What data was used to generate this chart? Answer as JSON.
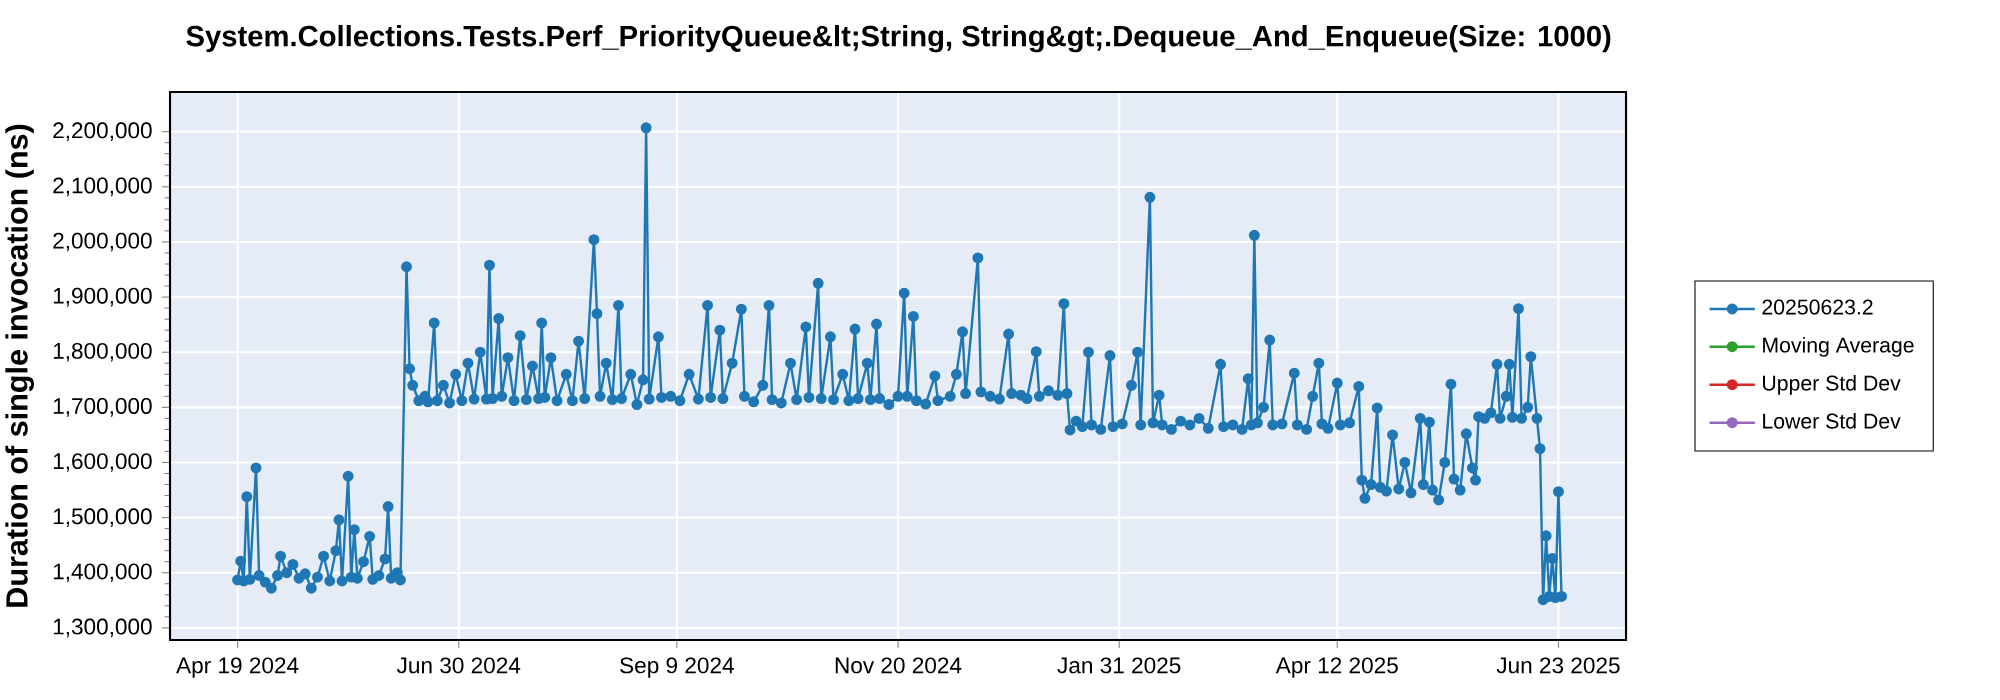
{
  "chart_data": {
    "type": "line",
    "title": "System.Collections.Tests.Perf_PriorityQueue&lt;String, String&gt;.Dequeue_And_Enqueue(Size: 1000)",
    "ylabel": "Duration of single invocation (ns)",
    "x": [
      "2024-04-19",
      "2024-04-20",
      "2024-04-21",
      "2024-04-22",
      "2024-04-23",
      "2024-04-25",
      "2024-04-26",
      "2024-04-28",
      "2024-04-30",
      "2024-05-02",
      "2024-05-03",
      "2024-05-05",
      "2024-05-07",
      "2024-05-09",
      "2024-05-11",
      "2024-05-13",
      "2024-05-15",
      "2024-05-17",
      "2024-05-19",
      "2024-05-21",
      "2024-05-22",
      "2024-05-23",
      "2024-05-25",
      "2024-05-26",
      "2024-05-27",
      "2024-05-28",
      "2024-05-30",
      "2024-06-01",
      "2024-06-02",
      "2024-06-04",
      "2024-06-06",
      "2024-06-07",
      "2024-06-08",
      "2024-06-10",
      "2024-06-11",
      "2024-06-13",
      "2024-06-14",
      "2024-06-15",
      "2024-06-17",
      "2024-06-19",
      "2024-06-20",
      "2024-06-22",
      "2024-06-23",
      "2024-06-25",
      "2024-06-27",
      "2024-06-29",
      "2024-07-01",
      "2024-07-03",
      "2024-07-05",
      "2024-07-07",
      "2024-07-09",
      "2024-07-10",
      "2024-07-11",
      "2024-07-13",
      "2024-07-14",
      "2024-07-16",
      "2024-07-18",
      "2024-07-20",
      "2024-07-22",
      "2024-07-24",
      "2024-07-26",
      "2024-07-27",
      "2024-07-28",
      "2024-07-30",
      "2024-08-01",
      "2024-08-04",
      "2024-08-06",
      "2024-08-08",
      "2024-08-10",
      "2024-08-13",
      "2024-08-14",
      "2024-08-15",
      "2024-08-17",
      "2024-08-19",
      "2024-08-21",
      "2024-08-22",
      "2024-08-25",
      "2024-08-27",
      "2024-08-29",
      "2024-08-30",
      "2024-08-31",
      "2024-09-03",
      "2024-09-04",
      "2024-09-07",
      "2024-09-10",
      "2024-09-13",
      "2024-09-16",
      "2024-09-19",
      "2024-09-20",
      "2024-09-23",
      "2024-09-24",
      "2024-09-27",
      "2024-09-30",
      "2024-10-01",
      "2024-10-04",
      "2024-10-07",
      "2024-10-09",
      "2024-10-10",
      "2024-10-13",
      "2024-10-16",
      "2024-10-18",
      "2024-10-21",
      "2024-10-22",
      "2024-10-25",
      "2024-10-26",
      "2024-10-29",
      "2024-10-30",
      "2024-11-02",
      "2024-11-04",
      "2024-11-06",
      "2024-11-07",
      "2024-11-10",
      "2024-11-11",
      "2024-11-13",
      "2024-11-14",
      "2024-11-17",
      "2024-11-20",
      "2024-11-22",
      "2024-11-23",
      "2024-11-25",
      "2024-11-26",
      "2024-11-29",
      "2024-12-02",
      "2024-12-03",
      "2024-12-07",
      "2024-12-09",
      "2024-12-11",
      "2024-12-12",
      "2024-12-16",
      "2024-12-17",
      "2024-12-20",
      "2024-12-23",
      "2024-12-26",
      "2024-12-27",
      "2024-12-30",
      "2025-01-01",
      "2025-01-04",
      "2025-01-05",
      "2025-01-08",
      "2025-01-11",
      "2025-01-13",
      "2025-01-14",
      "2025-01-15",
      "2025-01-17",
      "2025-01-19",
      "2025-01-21",
      "2025-01-22",
      "2025-01-25",
      "2025-01-28",
      "2025-01-29",
      "2025-02-01",
      "2025-02-04",
      "2025-02-06",
      "2025-02-07",
      "2025-02-10",
      "2025-02-11",
      "2025-02-13",
      "2025-02-14",
      "2025-02-17",
      "2025-02-20",
      "2025-02-23",
      "2025-02-26",
      "2025-03-01",
      "2025-03-05",
      "2025-03-06",
      "2025-03-09",
      "2025-03-12",
      "2025-03-14",
      "2025-03-15",
      "2025-03-16",
      "2025-03-17",
      "2025-03-19",
      "2025-03-21",
      "2025-03-22",
      "2025-03-25",
      "2025-03-29",
      "2025-03-30",
      "2025-04-02",
      "2025-04-04",
      "2025-04-06",
      "2025-04-07",
      "2025-04-09",
      "2025-04-12",
      "2025-04-13",
      "2025-04-16",
      "2025-04-19",
      "2025-04-20",
      "2025-04-21",
      "2025-04-23",
      "2025-04-25",
      "2025-04-26",
      "2025-04-28",
      "2025-04-30",
      "2025-05-02",
      "2025-05-04",
      "2025-05-06",
      "2025-05-09",
      "2025-05-10",
      "2025-05-12",
      "2025-05-13",
      "2025-05-15",
      "2025-05-17",
      "2025-05-19",
      "2025-05-20",
      "2025-05-22",
      "2025-05-24",
      "2025-05-26",
      "2025-05-27",
      "2025-05-28",
      "2025-05-30",
      "2025-06-01",
      "2025-06-03",
      "2025-06-04",
      "2025-06-06",
      "2025-06-07",
      "2025-06-08",
      "2025-06-10",
      "2025-06-11",
      "2025-06-13",
      "2025-06-14",
      "2025-06-16",
      "2025-06-17",
      "2025-06-18",
      "2025-06-19",
      "2025-06-20",
      "2025-06-21",
      "2025-06-22",
      "2025-06-23",
      "2025-06-24"
    ],
    "series": [
      {
        "name": "20250623.2",
        "color": "#1f77b4",
        "values": [
          1387000,
          1421000,
          1385000,
          1538000,
          1388000,
          1590000,
          1395000,
          1383000,
          1372000,
          1395000,
          1430000,
          1400000,
          1415000,
          1390000,
          1398000,
          1372000,
          1392000,
          1430000,
          1385000,
          1440000,
          1496000,
          1385000,
          1575000,
          1392000,
          1478000,
          1390000,
          1420000,
          1466000,
          1388000,
          1395000,
          1425000,
          1520000,
          1390000,
          1400000,
          1387000,
          1955000,
          1770000,
          1740000,
          1712000,
          1720000,
          1710000,
          1853000,
          1712000,
          1740000,
          1708000,
          1760000,
          1712000,
          1780000,
          1715000,
          1800000,
          1715000,
          1958000,
          1716000,
          1861000,
          1720000,
          1790000,
          1712000,
          1830000,
          1714000,
          1775000,
          1716000,
          1853000,
          1718000,
          1790000,
          1712000,
          1760000,
          1712000,
          1820000,
          1716000,
          2004000,
          1870000,
          1720000,
          1780000,
          1714000,
          1885000,
          1716000,
          1760000,
          1705000,
          1750000,
          2207000,
          1715000,
          1828000,
          1718000,
          1720000,
          1712000,
          1760000,
          1715000,
          1885000,
          1718000,
          1840000,
          1716000,
          1780000,
          1878000,
          1720000,
          1710000,
          1740000,
          1885000,
          1714000,
          1708000,
          1780000,
          1714000,
          1846000,
          1718000,
          1925000,
          1716000,
          1828000,
          1714000,
          1760000,
          1712000,
          1842000,
          1716000,
          1780000,
          1714000,
          1851000,
          1716000,
          1705000,
          1720000,
          1907000,
          1720000,
          1865000,
          1712000,
          1706000,
          1757000,
          1712000,
          1720000,
          1760000,
          1837000,
          1725000,
          1971000,
          1728000,
          1720000,
          1715000,
          1833000,
          1725000,
          1722000,
          1716000,
          1801000,
          1720000,
          1730000,
          1722000,
          1888000,
          1725000,
          1659000,
          1675000,
          1665000,
          1800000,
          1668000,
          1660000,
          1794000,
          1665000,
          1670000,
          1740000,
          1800000,
          1668000,
          2081000,
          1672000,
          1722000,
          1668000,
          1660000,
          1675000,
          1668000,
          1680000,
          1662000,
          1778000,
          1665000,
          1668000,
          1660000,
          1752000,
          1668000,
          2012000,
          1672000,
          1700000,
          1822000,
          1668000,
          1670000,
          1762000,
          1668000,
          1660000,
          1720000,
          1780000,
          1670000,
          1662000,
          1744000,
          1668000,
          1672000,
          1738000,
          1568000,
          1535000,
          1560000,
          1699000,
          1555000,
          1548000,
          1650000,
          1552000,
          1600000,
          1545000,
          1680000,
          1560000,
          1673000,
          1550000,
          1532000,
          1600000,
          1742000,
          1570000,
          1550000,
          1652000,
          1590000,
          1568000,
          1683000,
          1680000,
          1690000,
          1778000,
          1680000,
          1720000,
          1778000,
          1682000,
          1879000,
          1680000,
          1700000,
          1792000,
          1680000,
          1625000,
          1351000,
          1467000,
          1357000,
          1426000,
          1355000,
          1547000,
          1357000
        ]
      },
      {
        "name": "Moving Average",
        "color": "#2ca02c",
        "values": [
          null,
          null,
          null,
          null,
          null,
          null,
          null,
          null,
          null,
          null,
          null,
          null,
          null,
          null,
          null,
          null,
          null,
          null,
          null,
          null,
          null,
          null,
          null,
          null,
          null,
          null,
          null,
          null,
          null,
          null,
          null,
          null,
          null,
          null,
          null,
          null,
          null,
          null,
          null,
          null,
          null,
          null,
          null,
          null,
          null,
          null,
          null,
          null,
          null,
          null,
          null,
          null,
          null,
          null,
          null,
          null,
          null,
          null,
          null,
          null,
          null,
          null,
          null,
          null,
          null,
          null,
          null,
          null,
          null,
          null,
          null,
          null,
          null,
          null,
          null,
          null,
          null,
          null,
          null,
          null,
          null,
          null,
          null,
          null,
          null,
          null,
          null,
          null,
          null,
          null,
          null,
          null,
          null,
          null,
          null,
          null,
          null,
          null,
          null,
          null,
          null,
          null,
          null,
          null,
          null,
          null,
          null,
          null,
          null,
          null,
          null,
          null,
          null,
          null,
          null,
          null,
          null,
          null,
          null,
          null,
          null,
          null,
          null,
          null,
          null,
          null,
          null,
          null,
          null,
          null,
          null,
          null,
          null,
          null,
          null,
          null,
          null,
          null,
          null,
          null,
          null,
          null,
          null,
          null,
          null,
          null,
          null,
          null,
          null,
          null,
          null,
          null,
          null,
          null,
          null,
          null,
          null,
          null,
          null,
          null,
          null,
          null,
          null,
          null,
          null,
          null,
          null,
          null,
          null,
          null,
          null,
          null,
          null,
          null,
          null,
          null,
          null,
          null,
          null,
          null,
          null,
          null,
          null,
          null,
          null,
          null,
          null,
          null,
          null,
          null,
          null,
          null,
          null,
          null,
          null,
          null,
          null,
          null,
          null,
          null,
          null,
          null,
          null,
          null,
          null,
          null,
          null,
          null,
          null,
          null,
          null,
          null,
          null,
          null,
          null,
          null,
          null,
          null,
          null,
          null,
          null,
          null,
          null,
          null,
          null,
          null,
          null,
          null,
          null
        ]
      },
      {
        "name": "Upper Std Dev",
        "color": "#d62728",
        "values": [
          null,
          null,
          null,
          null,
          null,
          null,
          null,
          null,
          null,
          null,
          null,
          null,
          null,
          null,
          null,
          null,
          null,
          null,
          null,
          null,
          null,
          null,
          null,
          null,
          null,
          null,
          null,
          null,
          null,
          null,
          null,
          null,
          null,
          null,
          null,
          null,
          null,
          null,
          null,
          null,
          null,
          null,
          null,
          null,
          null,
          null,
          null,
          null,
          null,
          null,
          null,
          null,
          null,
          null,
          null,
          null,
          null,
          null,
          null,
          null,
          null,
          null,
          null,
          null,
          null,
          null,
          null,
          null,
          null,
          null,
          null,
          null,
          null,
          null,
          null,
          null,
          null,
          null,
          null,
          null,
          null,
          null,
          null,
          null,
          null,
          null,
          null,
          null,
          null,
          null,
          null,
          null,
          null,
          null,
          null,
          null,
          null,
          null,
          null,
          null,
          null,
          null,
          null,
          null,
          null,
          null,
          null,
          null,
          null,
          null,
          null,
          null,
          null,
          null,
          null,
          null,
          null,
          null,
          null,
          null,
          null,
          null,
          null,
          null,
          null,
          null,
          null,
          null,
          null,
          null,
          null,
          null,
          null,
          null,
          null,
          null,
          null,
          null,
          null,
          null,
          null,
          null,
          null,
          null,
          null,
          null,
          null,
          null,
          null,
          null,
          null,
          null,
          null,
          null,
          null,
          null,
          null,
          null,
          null,
          null,
          null,
          null,
          null,
          null,
          null,
          null,
          null,
          null,
          null,
          null,
          null,
          null,
          null,
          null,
          null,
          null,
          null,
          null,
          null,
          null,
          null,
          null,
          null,
          null,
          null,
          null,
          null,
          null,
          null,
          null,
          null,
          null,
          null,
          null,
          null,
          null,
          null,
          null,
          null,
          null,
          null,
          null,
          null,
          null,
          null,
          null,
          null,
          null,
          null,
          null,
          null,
          null,
          null,
          null,
          null,
          null,
          null,
          null,
          null,
          null,
          null,
          null,
          null,
          null,
          null,
          null,
          null,
          null,
          null
        ]
      },
      {
        "name": "Lower Std Dev",
        "color": "#9467bd",
        "values": [
          null,
          null,
          null,
          null,
          null,
          null,
          null,
          null,
          null,
          null,
          null,
          null,
          null,
          null,
          null,
          null,
          null,
          null,
          null,
          null,
          null,
          null,
          null,
          null,
          null,
          null,
          null,
          null,
          null,
          null,
          null,
          null,
          null,
          null,
          null,
          null,
          null,
          null,
          null,
          null,
          null,
          null,
          null,
          null,
          null,
          null,
          null,
          null,
          null,
          null,
          null,
          null,
          null,
          null,
          null,
          null,
          null,
          null,
          null,
          null,
          null,
          null,
          null,
          null,
          null,
          null,
          null,
          null,
          null,
          null,
          null,
          null,
          null,
          null,
          null,
          null,
          null,
          null,
          null,
          null,
          null,
          null,
          null,
          null,
          null,
          null,
          null,
          null,
          null,
          null,
          null,
          null,
          null,
          null,
          null,
          null,
          null,
          null,
          null,
          null,
          null,
          null,
          null,
          null,
          null,
          null,
          null,
          null,
          null,
          null,
          null,
          null,
          null,
          null,
          null,
          null,
          null,
          null,
          null,
          null,
          null,
          null,
          null,
          null,
          null,
          null,
          null,
          null,
          null,
          null,
          null,
          null,
          null,
          null,
          null,
          null,
          null,
          null,
          null,
          null,
          null,
          null,
          null,
          null,
          null,
          null,
          null,
          null,
          null,
          null,
          null,
          null,
          null,
          null,
          null,
          null,
          null,
          null,
          null,
          null,
          null,
          null,
          null,
          null,
          null,
          null,
          null,
          null,
          null,
          null,
          null,
          null,
          null,
          null,
          null,
          null,
          null,
          null,
          null,
          null,
          null,
          null,
          null,
          null,
          null,
          null,
          null,
          null,
          null,
          null,
          null,
          null,
          null,
          null,
          null,
          null,
          null,
          null,
          null,
          null,
          null,
          null,
          null,
          null,
          null,
          null,
          null,
          null,
          null,
          null,
          null,
          null,
          null,
          null,
          null,
          null,
          null,
          null,
          null,
          null,
          null,
          null,
          null,
          null,
          null,
          null,
          null,
          null,
          null
        ]
      }
    ],
    "xlim": [
      "2024-03-28",
      "2025-07-15"
    ],
    "xticks": [
      {
        "value": "2024-04-19",
        "label": "Apr 19 2024"
      },
      {
        "value": "2024-06-30",
        "label": "Jun 30 2024"
      },
      {
        "value": "2024-09-09",
        "label": "Sep 9 2024"
      },
      {
        "value": "2024-11-20",
        "label": "Nov 20 2024"
      },
      {
        "value": "2025-01-31",
        "label": "Jan 31 2025"
      },
      {
        "value": "2025-04-12",
        "label": "Apr 12 2025"
      },
      {
        "value": "2025-06-23",
        "label": "Jun 23 2025"
      }
    ],
    "ylim": [
      1278000,
      2272000
    ],
    "yticks": [
      {
        "value": 1300000,
        "label": "1,300,000"
      },
      {
        "value": 1400000,
        "label": "1,400,000"
      },
      {
        "value": 1500000,
        "label": "1,500,000"
      },
      {
        "value": 1600000,
        "label": "1,600,000"
      },
      {
        "value": 1700000,
        "label": "1,700,000"
      },
      {
        "value": 1800000,
        "label": "1,800,000"
      },
      {
        "value": 1900000,
        "label": "1,900,000"
      },
      {
        "value": 2000000,
        "label": "2,000,000"
      },
      {
        "value": 2100000,
        "label": "2,100,000"
      },
      {
        "value": 2200000,
        "label": "2,200,000"
      }
    ],
    "grid": true,
    "legend": "right",
    "marker": "circle",
    "line_style": "solid"
  }
}
